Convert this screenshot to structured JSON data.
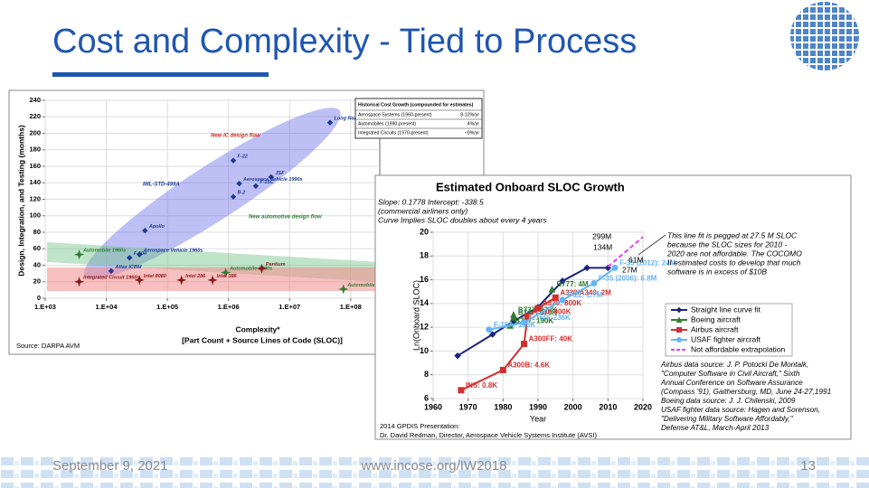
{
  "slide": {
    "title": "Cost and Complexity - Tied to Process",
    "date": "September 9, 2021",
    "url": "www.incose.org/IW2018",
    "page": "13"
  },
  "chart_data": [
    {
      "type": "scatter",
      "ylabel": "Design, Integration, and Testing (months)",
      "xlabel": "Complexity*",
      "xlabel_sub": "[Part Count + Source Lines of Code (SLOC)]",
      "source": "Source: DARPA AVM",
      "log_x": true,
      "xlim": [
        1000,
        300000000
      ],
      "ylim": [
        0,
        240
      ],
      "xticks": [
        {
          "value": 1000,
          "label": "1.E+03"
        },
        {
          "value": 10000,
          "label": "1.E+04"
        },
        {
          "value": 100000,
          "label": "1.E+05"
        },
        {
          "value": 1000000,
          "label": "1.E+06"
        },
        {
          "value": 10000000,
          "label": "1.E+07"
        },
        {
          "value": 100000000,
          "label": "1.E+08"
        }
      ],
      "yticks": [
        0,
        20,
        40,
        60,
        80,
        100,
        120,
        140,
        160,
        180,
        200,
        220,
        240
      ],
      "grid": true,
      "series": [
        {
          "color": "#1f3a93",
          "marker": "diamond",
          "x": [
            46000000,
            1200000,
            5000000,
            1500000,
            1200000,
            2800000,
            43000,
            35000,
            24000,
            12000
          ],
          "values": [
            213,
            167,
            147,
            139,
            123,
            136,
            82,
            53,
            49,
            33
          ],
          "point_labels": [
            "Long Range Strike (est.)",
            "F-22",
            "JSF",
            "Aerospace Vehicle 1990s",
            "B-2",
            "F-15C",
            "Apollo",
            "Aerospace Vehicle 1960s",
            "F-104",
            "Atlas ICBM"
          ]
        },
        {
          "color": "#2e7d32",
          "marker": "star",
          "x": [
            3600,
            900000,
            76000000
          ],
          "values": [
            53,
            31,
            11
          ],
          "point_labels": [
            "Automobile 1960s",
            "Automobile 1990s",
            "Automobile Next Gen*"
          ]
        },
        {
          "color": "#8b1a1a",
          "marker": "star",
          "x": [
            3600,
            35000,
            170000,
            550000,
            3500000
          ],
          "values": [
            20,
            22,
            22,
            22,
            36
          ],
          "point_labels": [
            "Integrated Circuit 1960s",
            "Intel 8080",
            "Intel 286",
            "Intel 386",
            "Pentium"
          ]
        }
      ],
      "annotations": [
        "New IC design flow",
        "MIL-STD-499A",
        "New automotive design flow"
      ],
      "cost_table": {
        "title": "Historical Cost Growth (compounded for estimates)",
        "rows": [
          [
            "Aerospace Systems (1960-present)",
            "8-12%/yr"
          ],
          [
            "Automobiles (1990-present)",
            "4%/yr"
          ],
          [
            "Integrated Circuits (1970-present)",
            "~0%/yr"
          ]
        ]
      }
    },
    {
      "type": "line",
      "title": "Estimated Onboard SLOC Growth",
      "header": [
        "Slope: 0.1778  Intercept: -338.5",
        "(commercial airliners only)",
        "Curve Implies SLOC doubles about every 4 years"
      ],
      "xlabel": "Year",
      "ylabel": "Ln(Onboard SLOC)",
      "xlim": [
        1960,
        2020
      ],
      "ylim": [
        6,
        20
      ],
      "xticks": [
        1960,
        1970,
        1980,
        1990,
        2000,
        2010,
        2020
      ],
      "yticks": [
        6,
        8,
        10,
        12,
        14,
        16,
        18,
        20
      ],
      "grid": true,
      "legend": "right",
      "series": [
        {
          "name": "Straight line curve fit",
          "color": "#1a237e",
          "marker": "diamond",
          "x": [
            1967,
            1977,
            1983,
            1990,
            1997,
            2004,
            2010
          ],
          "values": [
            9.6,
            11.4,
            12.5,
            13.7,
            15.9,
            17.0,
            17.0
          ]
        },
        {
          "name": "Boeing aircraft",
          "color": "#2e7d32",
          "marker": "triangle",
          "line": false,
          "x": [
            1982,
            1982,
            1983,
            1983,
            1994
          ],
          "values": [
            12.15,
            12.15,
            12.82,
            13.06,
            15.2
          ],
          "point_labels": [
            "B757: 190K",
            "B767: 190K",
            "B747: 370K",
            "B737: 470K",
            "B777: 4M"
          ]
        },
        {
          "name": "Airbus aircraft",
          "color": "#d32f2f",
          "marker": "square",
          "x": [
            1968,
            1980,
            1986,
            1987,
            1990,
            1995
          ],
          "values": [
            6.7,
            8.4,
            10.6,
            12.9,
            13.6,
            14.5
          ],
          "point_labels": [
            "INS: 0.8K",
            "A300B: 4.6K",
            "A300FF: 40K",
            "A310: 400K",
            "A320: 800K",
            "A330/A340: 2M"
          ]
        },
        {
          "name": "USAF fighter aircraft",
          "color": "#64b5f6",
          "marker": "circle",
          "x": [
            1976,
            1986,
            1997,
            2006,
            2012
          ],
          "values": [
            11.8,
            12.4,
            14.3,
            15.7,
            17.0
          ],
          "point_labels": [
            "F-16A: 135K",
            "F-16D: 236K",
            "F-22: 1.7M",
            "F-35 (2006): 6.8M",
            "F-35 (2012): 24M"
          ]
        },
        {
          "name": "Not affordable extrapolation",
          "color": "#e040fb",
          "marker": "none",
          "dashed": true,
          "x": [
            2010,
            2020
          ],
          "values": [
            17.1,
            19.6
          ]
        }
      ],
      "annotations": [
        "299M",
        "134M",
        "61M",
        "27M"
      ],
      "note": [
        "This line fit is pegged at 27.5 M SLOC",
        "because the SLOC sizes for 2010 -",
        "2020 are not affordable. The COCOMO",
        "II estimated costs to develop that much",
        "software is in excess of $10B"
      ],
      "data_source": [
        "Airbus data source: J. P. Potocki De Montalk,",
        "\"Computer Software in Civil Aircraft,\" Sixth",
        "Annual Conference on Software Assurance",
        "(Compass '91), Gaithersburg, MD, June 24-27,1991",
        "Boeing data source: J. J. Chilenski, 2009",
        "USAF fighter data source: Hagen and Sorenson,",
        "\"Delivering Military Software Affordably,\"",
        "Defense AT&L, March-April 2013"
      ],
      "source": [
        "2014 GPDIS Presentation:",
        "Dr. David Redman, Director, Aerospace Vehicle Systems Institute (AVSI)"
      ]
    }
  ]
}
